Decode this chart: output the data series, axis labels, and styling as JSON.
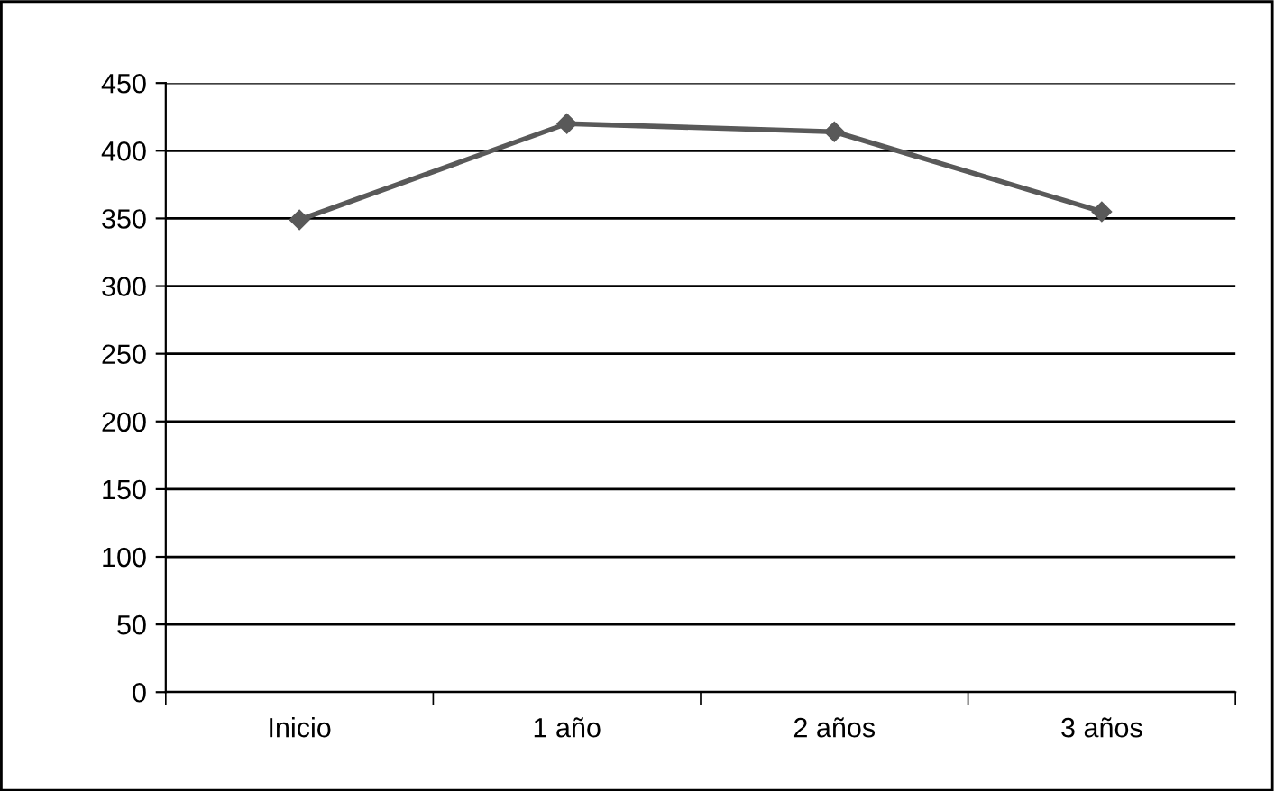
{
  "chart_data": {
    "type": "line",
    "categories": [
      "Inicio",
      "1 año",
      "2 años",
      "3 años"
    ],
    "series": [
      {
        "color": "#595959",
        "values": [
          349,
          420,
          414,
          355
        ]
      }
    ],
    "ylim": [
      0,
      450
    ],
    "yticks": [
      0,
      50,
      100,
      150,
      200,
      250,
      300,
      350,
      400,
      450
    ],
    "grid": "y",
    "marker": "diamond",
    "line_style": "solid",
    "legend": false
  }
}
